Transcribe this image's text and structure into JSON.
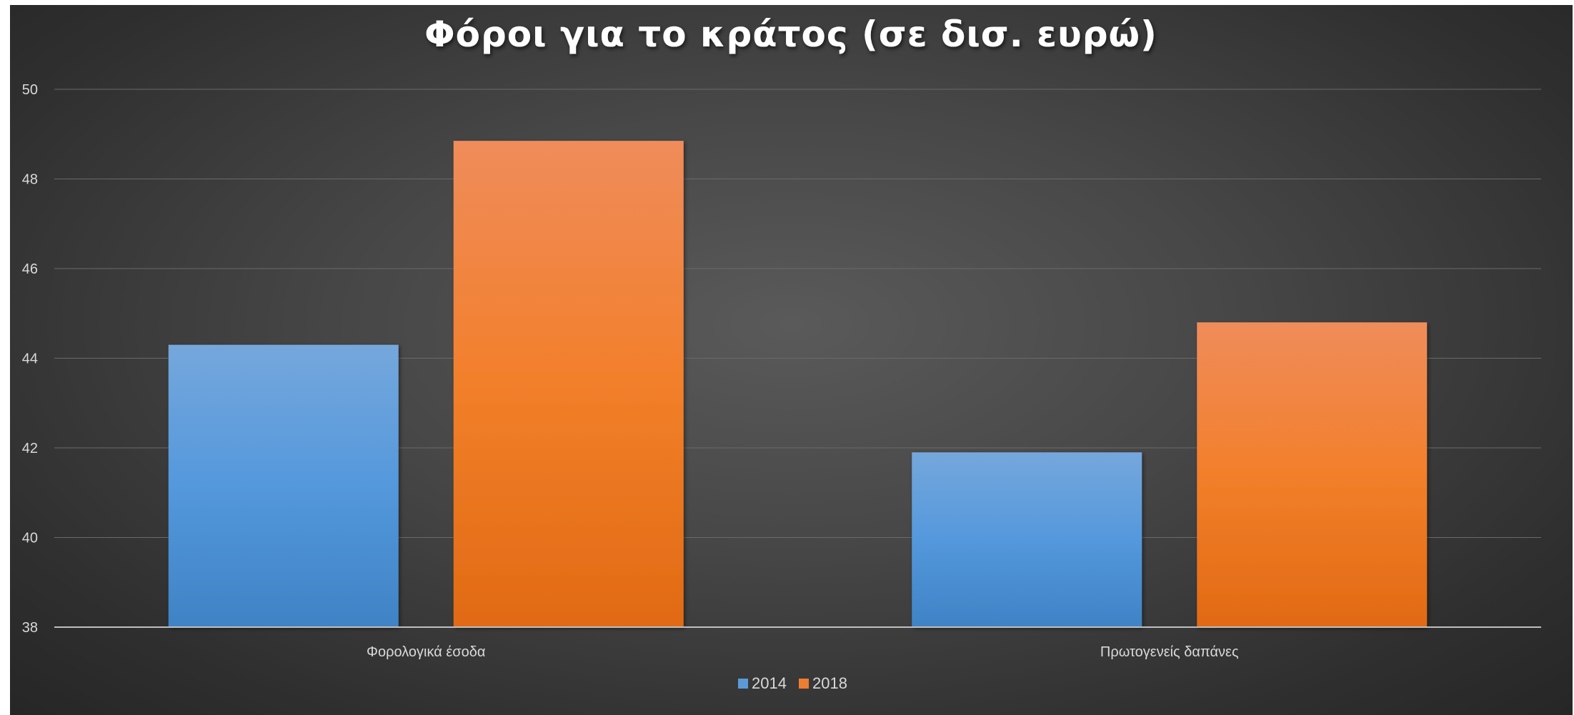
{
  "chart_data": {
    "type": "bar",
    "title": "Φόροι για το κράτος (σε δισ. ευρώ)",
    "xlabel": "",
    "ylabel": "",
    "categories": [
      "Φορολογικά έσοδα",
      "Πρωτογενείς δαπάνες"
    ],
    "series": [
      {
        "name": "2014",
        "values": [
          44.3,
          41.9
        ],
        "color": "#5b9bd5"
      },
      {
        "name": "2018",
        "values": [
          48.85,
          44.8
        ],
        "color": "#ed7d31"
      }
    ],
    "ylim": [
      38,
      50
    ],
    "yticks": [
      "38",
      "40",
      "42",
      "44",
      "46",
      "48",
      "50"
    ],
    "grid": true,
    "legend_position": "bottom"
  }
}
